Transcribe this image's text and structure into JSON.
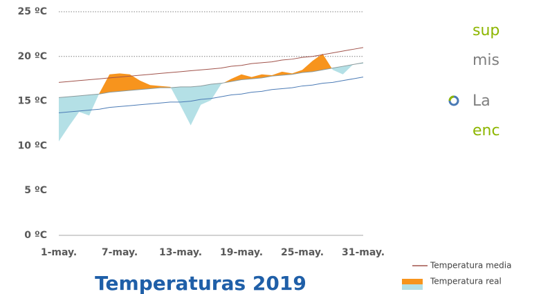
{
  "chart_data": {
    "type": "line",
    "title": "Temperaturas 2019",
    "categories": [
      "1-may.",
      null,
      null,
      null,
      null,
      null,
      "7-may.",
      null,
      null,
      null,
      null,
      null,
      "13-may.",
      null,
      null,
      null,
      null,
      null,
      "19-may.",
      null,
      null,
      null,
      null,
      null,
      "25-may.",
      null,
      null,
      null,
      null,
      null,
      "31-may."
    ],
    "series": [
      {
        "name": "Temperatura media",
        "color": "#a0524a",
        "values": [
          17.1,
          17.2,
          17.3,
          17.4,
          17.5,
          17.6,
          17.7,
          17.8,
          17.9,
          18.0,
          18.1,
          18.2,
          18.3,
          18.4,
          18.5,
          18.6,
          18.7,
          18.9,
          19.0,
          19.2,
          19.3,
          19.4,
          19.6,
          19.7,
          19.9,
          20.0,
          20.2,
          20.4,
          20.6,
          20.8,
          21.0
        ]
      },
      {
        "color": "#8a9a9c",
        "values": [
          15.4,
          15.5,
          15.6,
          15.7,
          15.8,
          16.0,
          16.1,
          16.2,
          16.3,
          16.4,
          16.5,
          16.5,
          16.6,
          16.6,
          16.7,
          16.9,
          17.0,
          17.2,
          17.4,
          17.5,
          17.6,
          17.8,
          17.9,
          18.0,
          18.2,
          18.3,
          18.5,
          18.7,
          18.9,
          19.1,
          19.3
        ]
      },
      {
        "color": "#4a7ab5",
        "values": [
          13.7,
          13.8,
          13.9,
          14.0,
          14.1,
          14.3,
          14.4,
          14.5,
          14.6,
          14.7,
          14.8,
          14.9,
          14.9,
          15.0,
          15.2,
          15.3,
          15.5,
          15.7,
          15.8,
          16.0,
          16.1,
          16.3,
          16.4,
          16.5,
          16.7,
          16.8,
          17.0,
          17.1,
          17.3,
          17.5,
          17.7
        ]
      },
      {
        "name": "Temperatura real",
        "color": "#f7941d",
        "below_color": "#b4e0e6",
        "values": [
          10.5,
          12.2,
          13.8,
          13.4,
          15.9,
          18.0,
          18.1,
          18.0,
          17.3,
          16.8,
          16.7,
          16.6,
          14.5,
          12.3,
          14.6,
          15.1,
          16.9,
          17.5,
          18.0,
          17.7,
          18.0,
          17.9,
          18.3,
          18.1,
          18.5,
          19.5,
          20.3,
          18.5,
          18.0,
          19.1,
          19.2
        ]
      }
    ],
    "ylim": [
      0,
      25
    ],
    "yticks": [
      {
        "value": 0,
        "label": "0 ºC"
      },
      {
        "value": 5,
        "label": "5 ºC"
      },
      {
        "value": 10,
        "label": "10 ºC"
      },
      {
        "value": 15,
        "label": "15 ºC"
      },
      {
        "value": 20,
        "label": "20 ºC"
      },
      {
        "value": 25,
        "label": "25 ºC"
      }
    ],
    "grid_values": [
      20,
      25
    ]
  },
  "side_text": {
    "line1": "sup",
    "line2": "mis",
    "line3": "La",
    "line4": "enc"
  }
}
